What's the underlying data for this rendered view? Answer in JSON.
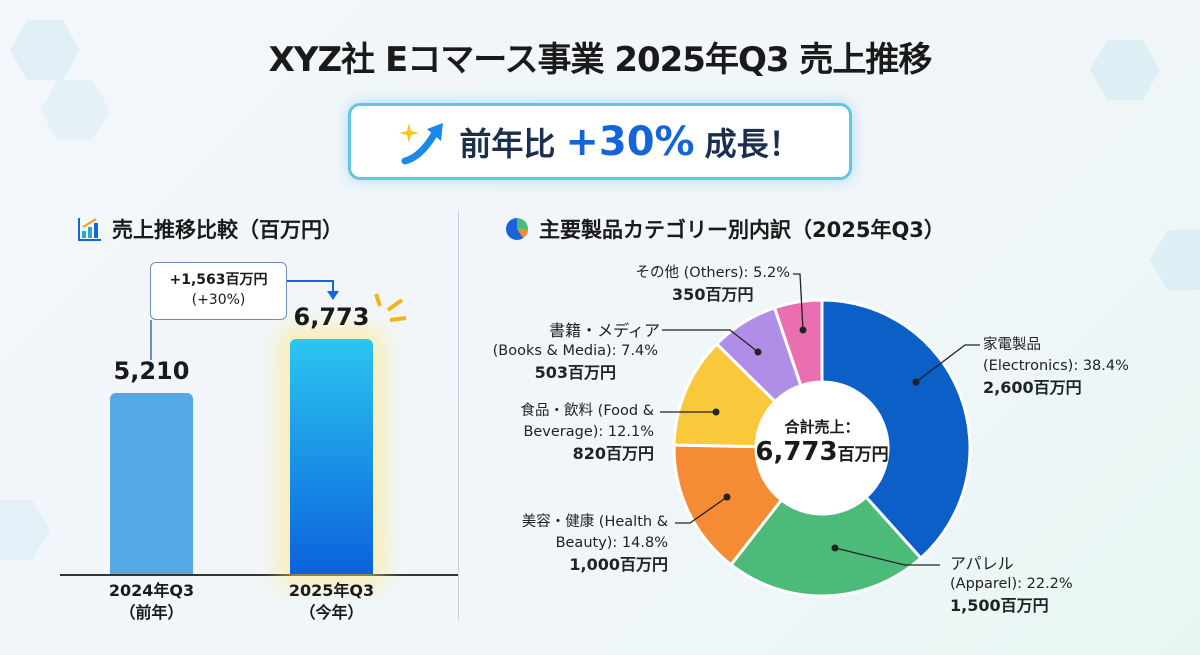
{
  "title": "XYZ社 Eコマース事業 2025年Q3 売上推移",
  "badge": {
    "prefix": "前年比",
    "value": "+30%",
    "suffix": "成長！",
    "icon": "sparkle-arrow-up-icon"
  },
  "colors": {
    "accent": "#1565d8",
    "bar_prev": "#55a8e6",
    "bar_curr": "#1a8ae8",
    "electronics": "#0b5fc6",
    "apparel": "#4cbb7a",
    "health": "#f58c35",
    "food": "#f9c93b",
    "books": "#b08ee8",
    "others": "#ea6fb0"
  },
  "chart_data": [
    {
      "type": "bar",
      "title": "売上推移比較（百万円）",
      "categories": [
        "2024年Q3\n（前年）",
        "2025年Q3\n（今年）"
      ],
      "category_lines": [
        [
          "2024年Q3",
          "（前年）"
        ],
        [
          "2025年Q3",
          "（今年）"
        ]
      ],
      "values": [
        5210,
        6773
      ],
      "value_labels": [
        "5,210",
        "6,773"
      ],
      "annotation": {
        "line1": "+1,563百万円",
        "line2": "(+30%)"
      },
      "ylim": [
        0,
        7500
      ],
      "grid": false
    },
    {
      "type": "pie",
      "donut": true,
      "title": "主要製品カテゴリー別内訳（2025年Q3）",
      "center": {
        "label": "合計売上：",
        "value": "6,773",
        "unit": "百万円"
      },
      "slices": [
        {
          "key": "electronics",
          "l1": "家電製品",
          "l2": "(Electronics): 38.4%",
          "amount": "2,600百万円",
          "pct": 38.4,
          "value": 2600
        },
        {
          "key": "apparel",
          "l1": "アパレル",
          "l2": "(Apparel): 22.2%",
          "amount": "1,500百万円",
          "pct": 22.2,
          "value": 1500
        },
        {
          "key": "health",
          "l1": "美容・健康 (Health &",
          "l2": "Beauty): 14.8%",
          "amount": "1,000百万円",
          "pct": 14.8,
          "value": 1000
        },
        {
          "key": "food",
          "l1": "食品・飲料 (Food &",
          "l2": "Beverage): 12.1%",
          "amount": "820百万円",
          "pct": 12.1,
          "value": 820
        },
        {
          "key": "books",
          "l1": "書籍・メディア",
          "l2": "(Books & Media): 7.4%",
          "amount": "503百万円",
          "pct": 7.4,
          "value": 503
        },
        {
          "key": "others",
          "l1": "その他 (Others): 5.2%",
          "l2": "",
          "amount": "350百万円",
          "pct": 5.2,
          "value": 350
        }
      ]
    }
  ]
}
